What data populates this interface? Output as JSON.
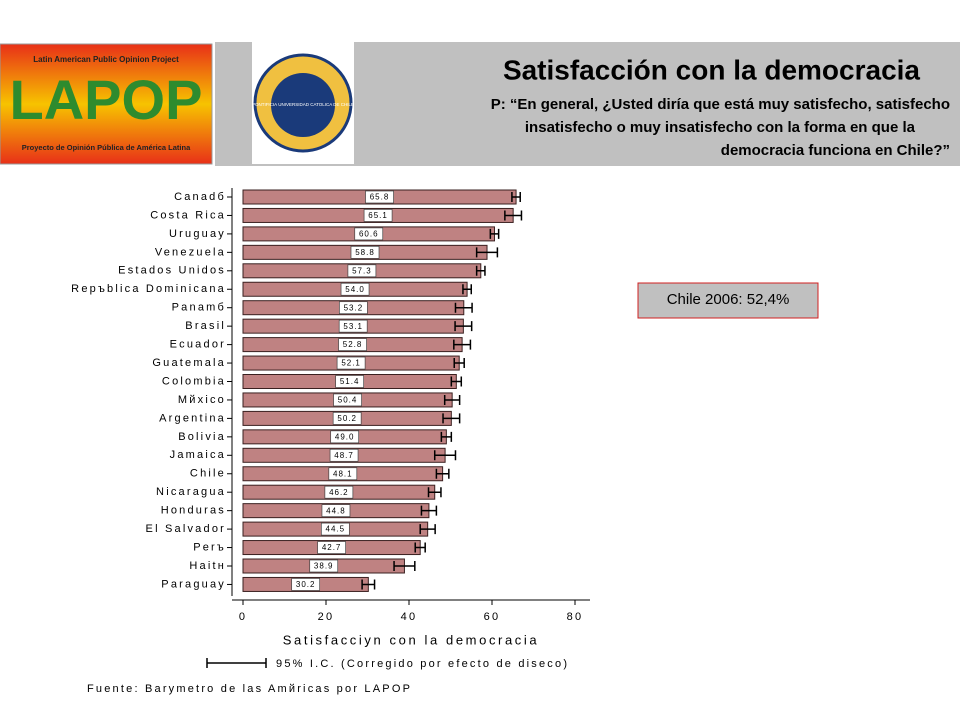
{
  "header": {
    "title": "Satisfacción con la democracia",
    "question": [
      "P: “En general, ¿Usted diría que está muy satisfecho, satisfecho",
      "insatisfecho o muy insatisfecho con la forma en que la",
      "democracia funciona en Chile?”"
    ]
  },
  "logo": {
    "top": "Latin American Public Opinion Project",
    "name": "LAPOP",
    "bottom": "Proyecto de Opinión Pública de América Latina"
  },
  "seal": {
    "text": "PONTIFICIA UNIVERSIDAD CATOLICA DE CHILE"
  },
  "callout": "Chile 2006: 52,4%",
  "chart_data": {
    "type": "bar",
    "categories": [
      "Canadб",
      "Costa Rica",
      "Uruguay",
      "Venezuela",
      "Estados Unidos",
      "Repъblica Dominicana",
      "Panamб",
      "Brasil",
      "Ecuador",
      "Guatemala",
      "Colombia",
      "Mйxico",
      "Argentina",
      "Bolivia",
      "Jamaica",
      "Chile",
      "Nicaragua",
      "Honduras",
      "El Salvador",
      "Perъ",
      "Haitн",
      "Paraguay"
    ],
    "values": [
      65.8,
      65.1,
      60.6,
      58.8,
      57.3,
      54.0,
      53.2,
      53.1,
      52.8,
      52.1,
      51.4,
      50.4,
      50.2,
      49.0,
      48.7,
      48.1,
      46.2,
      44.8,
      44.5,
      42.7,
      38.9,
      30.2
    ],
    "value_labels": [
      "65.8",
      "65.1",
      "60.6",
      "58.8",
      "57.3",
      "54.0",
      "53.2",
      "53.1",
      "52.8",
      "52.1",
      "51.4",
      "50.4",
      "50.2",
      "49.0",
      "48.7",
      "48.1",
      "46.2",
      "44.8",
      "44.5",
      "42.7",
      "38.9",
      "30.2"
    ],
    "errors": [
      1.0,
      2.0,
      1.0,
      2.5,
      1.0,
      1.0,
      2.0,
      2.0,
      2.0,
      1.2,
      1.2,
      1.8,
      2.0,
      1.2,
      2.5,
      1.5,
      1.5,
      1.8,
      1.8,
      1.2,
      2.5,
      1.5
    ],
    "color": "#bf8282",
    "xlim": [
      0,
      80
    ],
    "xticks": [
      0,
      20,
      40,
      60,
      80
    ],
    "xlabel": "Satisfacciyn con la democracia",
    "legend_label": "95% I.C. (Corregido por efecto de diseco)",
    "source": "Fuente: Barymetro de las Amйricas por LAPOP"
  }
}
